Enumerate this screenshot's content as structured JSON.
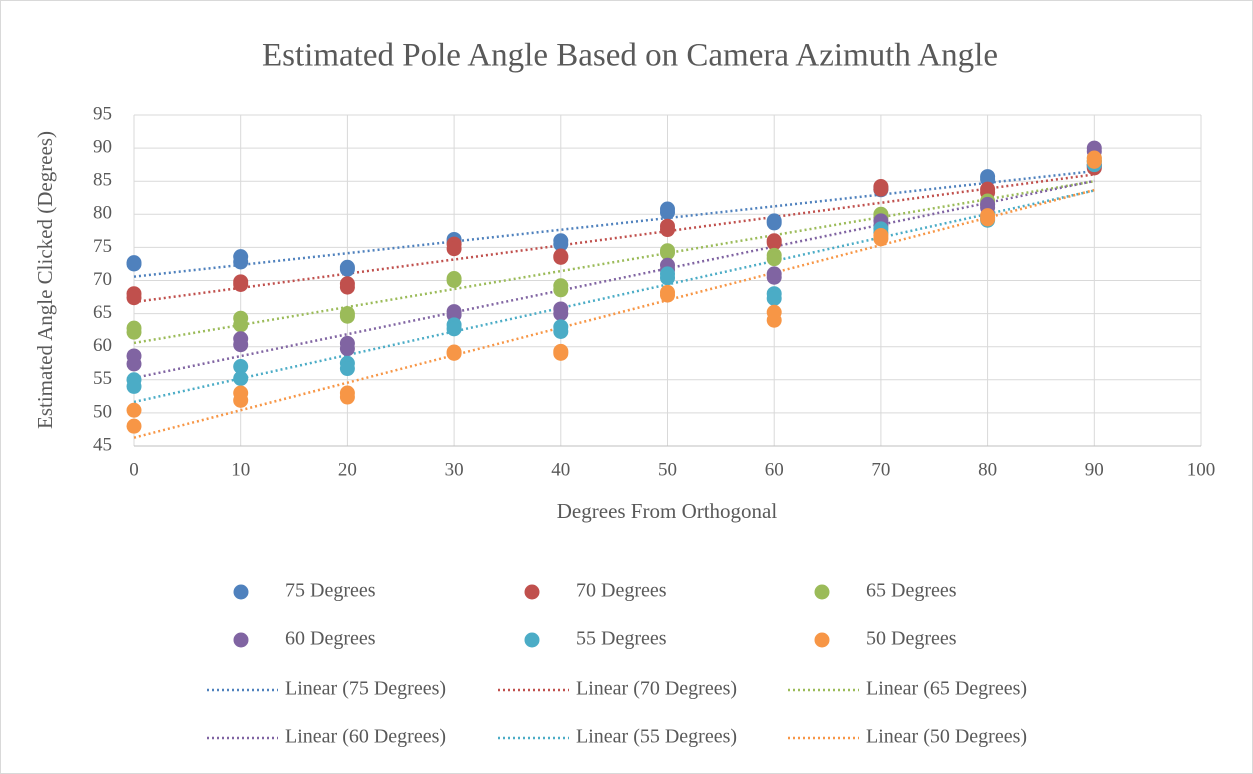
{
  "chart_data": {
    "type": "scatter",
    "title": "Estimated Pole Angle Based on Camera Azimuth Angle",
    "x_label": "Degrees From Orthogonal",
    "y_label": "Estimated Angle Clicked (Degrees)",
    "xlim": [
      0,
      100
    ],
    "xticks": [
      0,
      10,
      20,
      30,
      40,
      50,
      60,
      70,
      80,
      90,
      100
    ],
    "ylim": [
      45,
      95
    ],
    "yticks": [
      45,
      50,
      55,
      60,
      65,
      70,
      75,
      80,
      85,
      90,
      95
    ],
    "grid": true,
    "trendline": "linear",
    "series": [
      {
        "name": "75 Degrees",
        "trendline_name": "Linear (75 Degrees)",
        "color": "#4f81bd",
        "x": [
          0,
          0,
          10,
          10,
          20,
          20,
          30,
          30,
          40,
          40,
          50,
          50,
          60,
          60,
          70,
          70,
          80,
          80,
          90,
          90
        ],
        "values": [
          72.7,
          72.5,
          73.6,
          72.8,
          72.0,
          71.7,
          76.2,
          75.8,
          76.0,
          75.5,
          80.8,
          80.3,
          79.0,
          78.7,
          83.7,
          84.0,
          85.7,
          85.3,
          87.5,
          87.2
        ]
      },
      {
        "name": "70 Degrees",
        "trendline_name": "Linear (70 Degrees)",
        "color": "#c0504d",
        "x": [
          0,
          0,
          10,
          10,
          20,
          20,
          30,
          30,
          40,
          40,
          50,
          50,
          60,
          60,
          70,
          70,
          80,
          80,
          90,
          90
        ],
        "values": [
          68.0,
          67.4,
          69.8,
          69.4,
          69.5,
          69.0,
          75.5,
          74.8,
          73.5,
          73.7,
          78.2,
          77.7,
          76.0,
          75.7,
          84.2,
          83.8,
          83.8,
          83.3,
          87.0,
          87.4
        ]
      },
      {
        "name": "65 Degrees",
        "trendline_name": "Linear (65 Degrees)",
        "color": "#9bbb59",
        "x": [
          0,
          0,
          10,
          10,
          20,
          20,
          30,
          30,
          40,
          40,
          50,
          50,
          60,
          60,
          70,
          70,
          80,
          80,
          90,
          90
        ],
        "values": [
          62.8,
          62.2,
          64.3,
          63.3,
          65.0,
          64.6,
          70.3,
          70.0,
          69.2,
          68.6,
          74.5,
          74.2,
          73.8,
          73.3,
          80.0,
          79.5,
          82.0,
          81.5,
          88.5,
          88.0
        ]
      },
      {
        "name": "60 Degrees",
        "trendline_name": "Linear (60 Degrees)",
        "color": "#8064a2",
        "x": [
          0,
          0,
          10,
          10,
          20,
          20,
          30,
          30,
          40,
          40,
          50,
          50,
          60,
          60,
          70,
          70,
          80,
          80,
          90,
          90
        ],
        "values": [
          58.6,
          57.4,
          61.2,
          60.3,
          60.5,
          59.7,
          65.3,
          64.8,
          65.7,
          65.0,
          72.3,
          71.6,
          71.0,
          70.5,
          79.0,
          78.3,
          81.5,
          81.0,
          90.0,
          89.5
        ]
      },
      {
        "name": "55 Degrees",
        "trendline_name": "Linear (55 Degrees)",
        "color": "#4bacc6",
        "x": [
          0,
          0,
          10,
          10,
          20,
          20,
          30,
          30,
          40,
          40,
          50,
          50,
          60,
          60,
          70,
          70,
          80,
          80,
          90,
          90
        ],
        "values": [
          55.0,
          54.0,
          57.0,
          55.2,
          57.5,
          56.7,
          63.3,
          62.7,
          63.0,
          62.3,
          71.0,
          70.4,
          68.0,
          67.3,
          77.8,
          77.2,
          79.5,
          79.1,
          88.0,
          87.5
        ]
      },
      {
        "name": "50 Degrees",
        "trendline_name": "Linear (50 Degrees)",
        "color": "#f79646",
        "x": [
          0,
          0,
          10,
          10,
          20,
          20,
          30,
          30,
          40,
          40,
          50,
          50,
          60,
          60,
          70,
          70,
          80,
          80,
          90,
          90
        ],
        "values": [
          50.4,
          48.0,
          53.0,
          51.9,
          53.0,
          52.4,
          59.2,
          59.0,
          59.3,
          59.0,
          68.2,
          67.8,
          65.2,
          64.0,
          76.8,
          76.3,
          79.8,
          79.3,
          88.5,
          88.0
        ]
      }
    ]
  }
}
